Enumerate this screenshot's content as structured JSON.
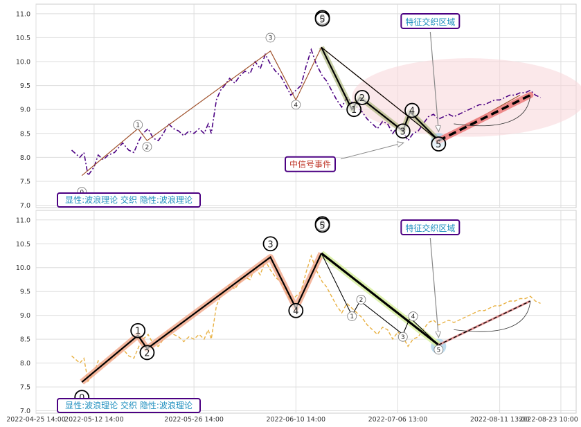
{
  "chart_data": [
    {
      "type": "line",
      "panel": "top",
      "ylim": [
        6.95,
        11.2
      ],
      "y_ticks": [
        "7.0",
        "7.5",
        "8.0",
        "8.5",
        "9.0",
        "9.5",
        "10.0",
        "10.5",
        "11.0"
      ],
      "grid": true,
      "series": [
        {
          "role": "price",
          "color": "#4b0082",
          "style": "dashdot",
          "x": [
            0.0,
            0.8,
            1.2,
            1.6,
            2.2,
            2.6,
            3.1,
            3.6,
            4.2,
            4.6,
            5.0,
            5.6,
            6.1,
            6.6,
            7.0,
            7.5,
            8.0,
            8.5,
            9.0,
            9.5,
            10.0,
            10.5,
            11.0,
            11.5,
            12.0,
            12.5,
            13.0,
            13.4,
            13.7,
            14.2,
            14.6,
            15.0,
            15.5,
            16.0,
            16.5,
            17.0,
            17.5,
            18.0,
            18.5,
            19.0,
            19.5,
            20.0,
            20.5,
            21.0,
            21.5,
            22.0,
            22.5,
            23.0,
            23.5,
            24.0,
            24.6,
            25.0,
            25.5,
            26.0,
            26.5,
            27.0,
            27.5,
            28.0,
            28.5,
            29.0,
            29.5,
            30.0,
            30.5,
            31.0,
            31.5,
            32.0,
            32.5,
            33.0,
            33.5,
            34.0,
            34.5,
            35.0,
            35.5,
            36.0,
            36.5,
            37.0,
            37.5,
            38.0,
            38.5,
            39.0,
            39.5,
            40.0,
            40.5,
            41.0,
            41.5,
            42.0,
            42.5,
            43.0,
            43.5,
            44.0,
            44.5,
            45.0,
            45.5,
            46.0
          ],
          "y": [
            8.15,
            8.0,
            8.1,
            7.62,
            7.8,
            8.05,
            7.95,
            8.05,
            8.1,
            8.2,
            8.3,
            8.15,
            8.1,
            8.35,
            8.5,
            8.6,
            8.4,
            8.35,
            8.5,
            8.7,
            8.6,
            8.55,
            8.45,
            8.55,
            8.5,
            8.6,
            8.5,
            8.7,
            8.5,
            9.2,
            9.4,
            9.5,
            9.65,
            9.55,
            9.7,
            9.8,
            9.75,
            10.0,
            9.85,
            10.15,
            9.95,
            9.8,
            9.7,
            9.5,
            9.3,
            9.4,
            9.5,
            9.9,
            10.25,
            9.95,
            9.7,
            9.6,
            9.4,
            9.2,
            9.05,
            9.25,
            9.15,
            9.05,
            8.95,
            8.8,
            8.7,
            8.6,
            8.75,
            8.7,
            8.5,
            8.65,
            8.55,
            8.35,
            8.5,
            8.55,
            8.7,
            8.85,
            8.9,
            8.8,
            8.85,
            8.9,
            8.85,
            8.9,
            8.95,
            9.0,
            9.05,
            9.1,
            9.1,
            9.15,
            9.2,
            9.2,
            9.25,
            9.3,
            9.3,
            9.35,
            9.35,
            9.4,
            9.3,
            9.25
          ]
        },
        {
          "role": "primary-wave",
          "color": "#a0522d",
          "x": [
            1.0,
            6.5,
            7.4,
            19.5,
            22.0,
            24.5,
            36.0,
            44.0
          ],
          "y": [
            7.62,
            8.6,
            8.35,
            10.22,
            9.2,
            10.3,
            8.35,
            9.3
          ]
        },
        {
          "role": "sub-wave",
          "color": "#000000",
          "x": [
            24.5,
            27.5,
            28.3,
            32.5,
            33.2,
            36.0
          ],
          "y": [
            10.3,
            9.0,
            9.25,
            8.55,
            8.95,
            8.35
          ]
        },
        {
          "role": "trend-line",
          "color": "#000000",
          "x": [
            24.5,
            36.0
          ],
          "y": [
            10.3,
            8.35
          ]
        },
        {
          "role": "forecast",
          "color": "#000000",
          "style": "dashed",
          "x": [
            36.0,
            45.0
          ],
          "y": [
            8.35,
            9.3
          ]
        }
      ],
      "wave_labels": [
        {
          "text": "0",
          "x": 1.0,
          "y": 7.28
        },
        {
          "text": "1",
          "x": 6.5,
          "y": 8.68
        },
        {
          "text": "2",
          "x": 7.4,
          "y": 8.22
        },
        {
          "text": "3",
          "x": 19.5,
          "y": 10.5
        },
        {
          "text": "4",
          "x": 22.0,
          "y": 9.1
        },
        {
          "text": "0",
          "x": 24.6,
          "y": 10.92
        },
        {
          "text": "5",
          "x": 24.6,
          "y": 10.89
        },
        {
          "text": "1",
          "x": 27.7,
          "y": 9.0
        },
        {
          "text": "2",
          "x": 28.5,
          "y": 9.25
        },
        {
          "text": "3",
          "x": 32.5,
          "y": 8.55
        },
        {
          "text": "4",
          "x": 33.4,
          "y": 8.98
        },
        {
          "text": "5",
          "x": 36.0,
          "y": 8.28
        }
      ],
      "annotations": [
        {
          "role": "feature-zone-label",
          "text": "特征交织区域",
          "color": "#1f8fbf"
        },
        {
          "role": "signal-event-label",
          "text": "中信号事件",
          "color": "#c0392b"
        },
        {
          "role": "status-footer",
          "text": "显性:波浪理论 交织 隐性:波浪理论",
          "color": "#1f8fbf"
        }
      ]
    },
    {
      "type": "line",
      "panel": "bottom",
      "ylim": [
        6.95,
        11.2
      ],
      "y_ticks": [
        "7.0",
        "7.5",
        "8.0",
        "8.5",
        "9.0",
        "9.5",
        "10.0",
        "10.5",
        "11.0"
      ],
      "x_ticks": [
        "2022-04-25 14:00",
        "2022-05-12 14:00",
        "2022-05-26 14:00",
        "2022-06-10 14:00",
        "2022-07-06 13:00",
        "2022-08-11 13:00",
        "2022-08-23 10:00"
      ],
      "grid": true,
      "series": [
        {
          "role": "price",
          "color": "#e8b040",
          "style": "dashed"
        },
        {
          "role": "primary-wave",
          "color": "#000000",
          "x": [
            1.0,
            6.5,
            7.4,
            19.5,
            22.0,
            24.5,
            36.0
          ],
          "y": [
            7.6,
            8.58,
            8.3,
            10.22,
            9.15,
            10.3,
            8.38
          ]
        },
        {
          "role": "sub-wave",
          "color": "#000000",
          "x": [
            24.5,
            27.5,
            28.3,
            32.5,
            33.2,
            36.0
          ],
          "y": [
            10.3,
            9.0,
            9.3,
            8.6,
            8.95,
            8.38
          ]
        },
        {
          "role": "forecast",
          "color": "#000000",
          "style": "dashed",
          "x": [
            36.0,
            45.0
          ],
          "y": [
            8.38,
            9.3
          ]
        }
      ],
      "wave_labels": [
        {
          "text": "0",
          "x": 1.0,
          "y": 7.28
        },
        {
          "text": "1",
          "x": 6.5,
          "y": 8.68
        },
        {
          "text": "2",
          "x": 7.4,
          "y": 8.22
        },
        {
          "text": "3",
          "x": 19.5,
          "y": 10.5
        },
        {
          "text": "4",
          "x": 22.0,
          "y": 9.1
        },
        {
          "text": "0",
          "x": 24.6,
          "y": 10.92
        },
        {
          "text": "5",
          "x": 24.6,
          "y": 10.89
        },
        {
          "text": "1",
          "x": 27.5,
          "y": 8.98
        },
        {
          "text": "2",
          "x": 28.4,
          "y": 9.33
        },
        {
          "text": "3",
          "x": 32.5,
          "y": 8.55
        },
        {
          "text": "4",
          "x": 33.5,
          "y": 8.98
        },
        {
          "text": "5",
          "x": 36.0,
          "y": 8.28
        }
      ],
      "annotations": [
        {
          "role": "feature-zone-label",
          "text": "特征交织区域",
          "color": "#1f8fbf"
        },
        {
          "role": "status-footer",
          "text": "显性:波浪理论 交织 隐性:波浪理论",
          "color": "#1f8fbf"
        }
      ]
    }
  ]
}
